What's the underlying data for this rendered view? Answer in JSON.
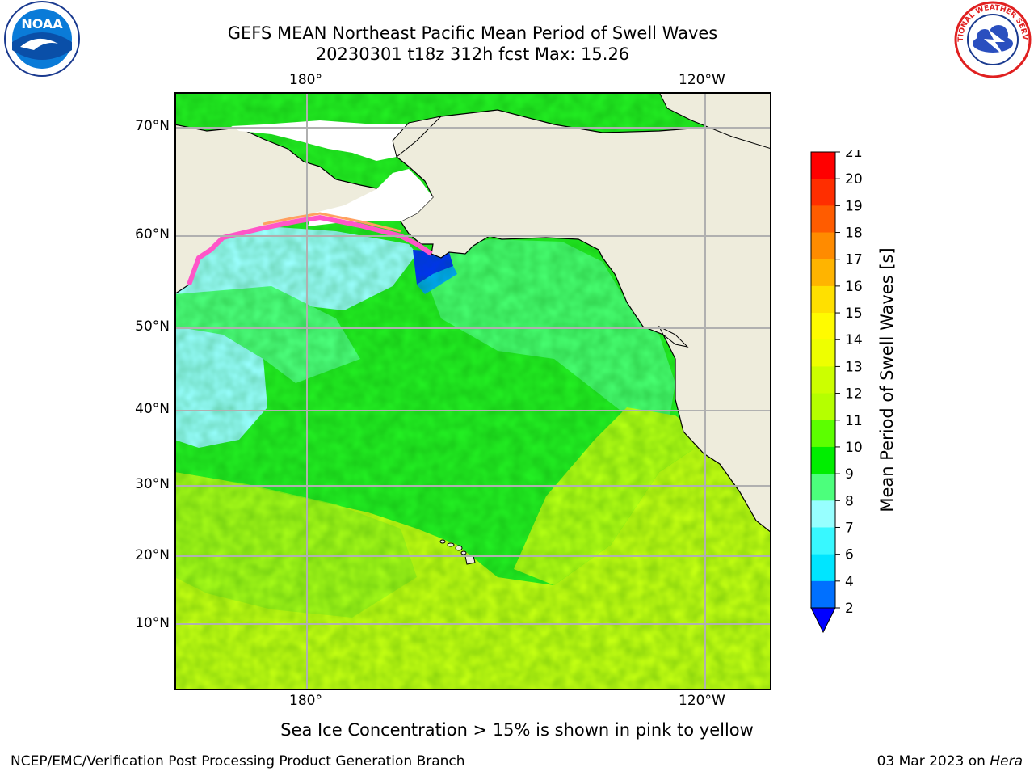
{
  "header": {
    "title_line1": "GEFS MEAN Northeast Pacific Mean Period of Swell Waves",
    "title_line2": "20230301 t18z 312h fcst   Max: 15.26"
  },
  "logos": {
    "left": "noaa-logo",
    "left_text": "NOAA",
    "right": "national-weather-service-logo",
    "right_text": "NATIONAL WEATHER SERVICE"
  },
  "map": {
    "lon_labels_top": [
      "180°",
      "120°W"
    ],
    "lon_labels_bottom": [
      "180°",
      "120°W"
    ],
    "lat_labels": [
      "70°N",
      "60°N",
      "50°N",
      "40°N",
      "30°N",
      "20°N",
      "10°N"
    ],
    "colors": {
      "land": "#eeecdc",
      "ocean_ice_free_white": "#ffffff",
      "grid": "#b0b0b0",
      "coastline": "#000000"
    }
  },
  "colorbar": {
    "title": "Mean Period of Swell Waves [s]",
    "tick_labels": [
      "2",
      "4",
      "6",
      "7",
      "8",
      "9",
      "10",
      "11",
      "12",
      "13",
      "14",
      "15",
      "16",
      "17",
      "18",
      "19",
      "20",
      "21"
    ],
    "colors": [
      "#0000ff",
      "#0070ff",
      "#00e5ff",
      "#38f8ff",
      "#97ffff",
      "#4cff7c",
      "#00ee00",
      "#5cff00",
      "#b5ff00",
      "#ccff00",
      "#eeff00",
      "#fffb00",
      "#ffe000",
      "#ffb400",
      "#ff8b00",
      "#ff5c00",
      "#ff2e00",
      "#ff0000"
    ]
  },
  "footer": {
    "note": "Sea Ice Concentration > 15% is shown in pink to yellow",
    "credit": "NCEP/EMC/Verification Post Processing Product Generation Branch",
    "date": "03 Mar 2023 on",
    "host": "Hera"
  }
}
